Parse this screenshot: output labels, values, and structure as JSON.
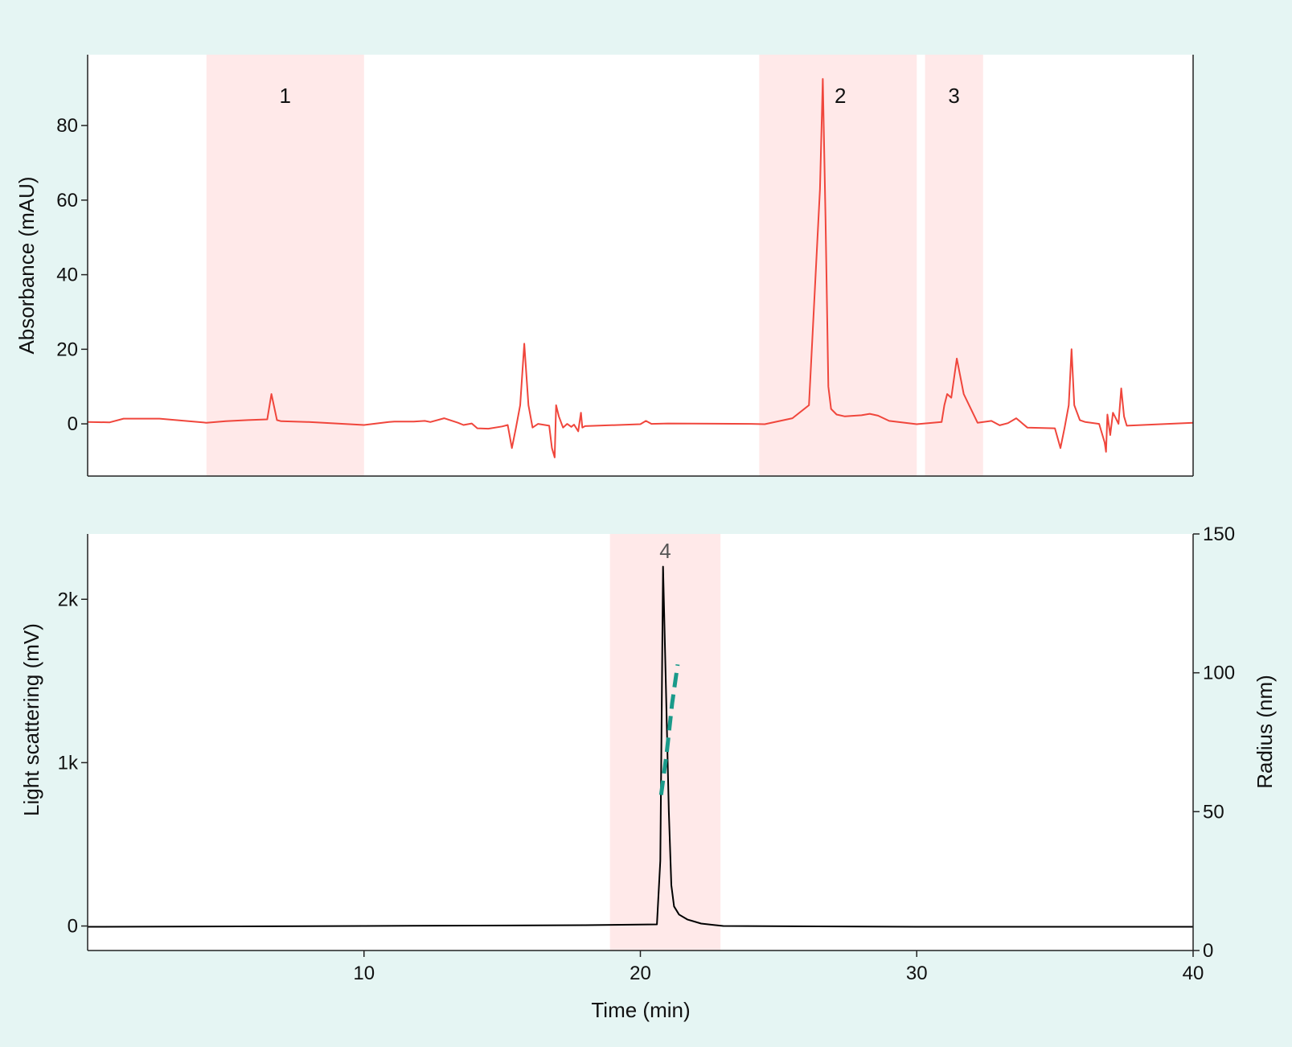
{
  "chart_data": [
    {
      "type": "line",
      "panel": "top",
      "ylabel": "Absorbance (mAU)",
      "xlabel": "",
      "xlim": [
        0,
        40
      ],
      "ylim": [
        -14,
        99
      ],
      "yticks": [
        0,
        20,
        40,
        60,
        80
      ],
      "ytick_labels": [
        "0",
        "20",
        "40",
        "60",
        "80"
      ],
      "regions": [
        {
          "label": "1",
          "x_start": 4.3,
          "x_end": 10.0
        },
        {
          "label": "2",
          "x_start": 24.3,
          "x_end": 30.0
        },
        {
          "label": "3",
          "x_start": 30.3,
          "x_end": 32.4
        }
      ],
      "series": [
        {
          "color": "#f0463c",
          "x": [
            0.0,
            0.8,
            1.3,
            2.6,
            4.3,
            5.0,
            5.8,
            6.5,
            6.65,
            6.85,
            7.0,
            8.0,
            10.0,
            10.9,
            11.1,
            11.8,
            12.2,
            12.4,
            12.9,
            13.4,
            13.6,
            13.9,
            14.1,
            14.5,
            15.0,
            15.2,
            15.35,
            15.5,
            15.65,
            15.8,
            15.95,
            16.1,
            16.3,
            16.7,
            16.8,
            16.9,
            16.95,
            17.05,
            17.2,
            17.35,
            17.5,
            17.6,
            17.75,
            17.85,
            17.9,
            18.0,
            20.0,
            20.2,
            20.4,
            21.0,
            24.0,
            24.5,
            25.5,
            26.1,
            26.5,
            26.6,
            26.7,
            26.8,
            26.9,
            27.1,
            27.4,
            28.0,
            28.3,
            28.6,
            29.0,
            30.0,
            30.9,
            31.0,
            31.1,
            31.25,
            31.45,
            31.7,
            32.2,
            32.7,
            33.0,
            33.3,
            33.6,
            34.0,
            35.0,
            35.2,
            35.35,
            35.5,
            35.6,
            35.7,
            35.9,
            36.1,
            36.6,
            36.8,
            36.85,
            36.9,
            37.0,
            37.1,
            37.2,
            37.3,
            37.4,
            37.5,
            37.6,
            38.5,
            40.0
          ],
          "y": [
            0.5,
            0.4,
            1.4,
            1.4,
            0.3,
            0.7,
            1.0,
            1.2,
            8.0,
            1.0,
            0.7,
            0.5,
            -0.3,
            0.5,
            0.6,
            0.6,
            0.8,
            0.5,
            1.5,
            0.3,
            -0.3,
            0.1,
            -1.2,
            -1.3,
            -0.7,
            -0.3,
            -6.5,
            -1.0,
            5.0,
            21.5,
            5.0,
            -1.0,
            0.0,
            -0.5,
            -6.5,
            -9.0,
            5.0,
            2.0,
            -1.0,
            0.0,
            -0.8,
            -0.2,
            -2.0,
            3.0,
            -1.0,
            -0.6,
            -0.1,
            0.8,
            0.0,
            0.1,
            0.0,
            -0.1,
            1.5,
            5.0,
            63.0,
            92.5,
            55.0,
            10.0,
            4.0,
            2.5,
            2.0,
            2.3,
            2.7,
            2.2,
            0.8,
            -0.1,
            0.5,
            5.0,
            8.0,
            7.0,
            17.5,
            8.0,
            0.3,
            0.8,
            -0.4,
            0.2,
            1.5,
            -1.0,
            -1.2,
            -6.5,
            -1.0,
            5.0,
            20.0,
            5.0,
            1.0,
            0.5,
            0.0,
            -5.0,
            -7.5,
            2.5,
            -3.0,
            3.0,
            1.5,
            0.0,
            9.5,
            2.0,
            -0.5,
            -0.2,
            0.3
          ]
        }
      ]
    },
    {
      "type": "line",
      "panel": "bottom",
      "xlabel": "Time (min)",
      "ylabel": "Light scattering (mV)",
      "y2label": "Radius (nm)",
      "xlim": [
        0,
        40
      ],
      "xticks": [
        10,
        20,
        30,
        40
      ],
      "xtick_labels": [
        "10",
        "20",
        "30",
        "40"
      ],
      "ylim": [
        -150,
        2400
      ],
      "yticks": [
        0,
        1000,
        2000
      ],
      "ytick_labels": [
        "0",
        "1k",
        "2k"
      ],
      "y2lim": [
        0,
        150
      ],
      "y2ticks": [
        0,
        50,
        100,
        150
      ],
      "y2tick_labels": [
        "0",
        "50",
        "100",
        "150"
      ],
      "regions": [
        {
          "label": "4",
          "x_start": 18.9,
          "x_end": 22.9
        }
      ],
      "series": [
        {
          "axis": "left",
          "color": "#000000",
          "x": [
            0.0,
            10.0,
            18.0,
            20.6,
            20.72,
            20.82,
            20.92,
            21.03,
            21.12,
            21.22,
            21.4,
            21.7,
            22.2,
            23.0,
            30.0,
            40.0
          ],
          "y": [
            -5,
            0,
            5,
            10,
            400,
            2200,
            1500,
            700,
            250,
            120,
            70,
            40,
            15,
            0,
            -5,
            -5
          ]
        },
        {
          "axis": "right",
          "color": "#1a9a8a",
          "style": "dashed",
          "x": [
            20.75,
            20.95,
            21.15,
            21.35
          ],
          "y": [
            56,
            71,
            89,
            103
          ]
        }
      ]
    }
  ]
}
